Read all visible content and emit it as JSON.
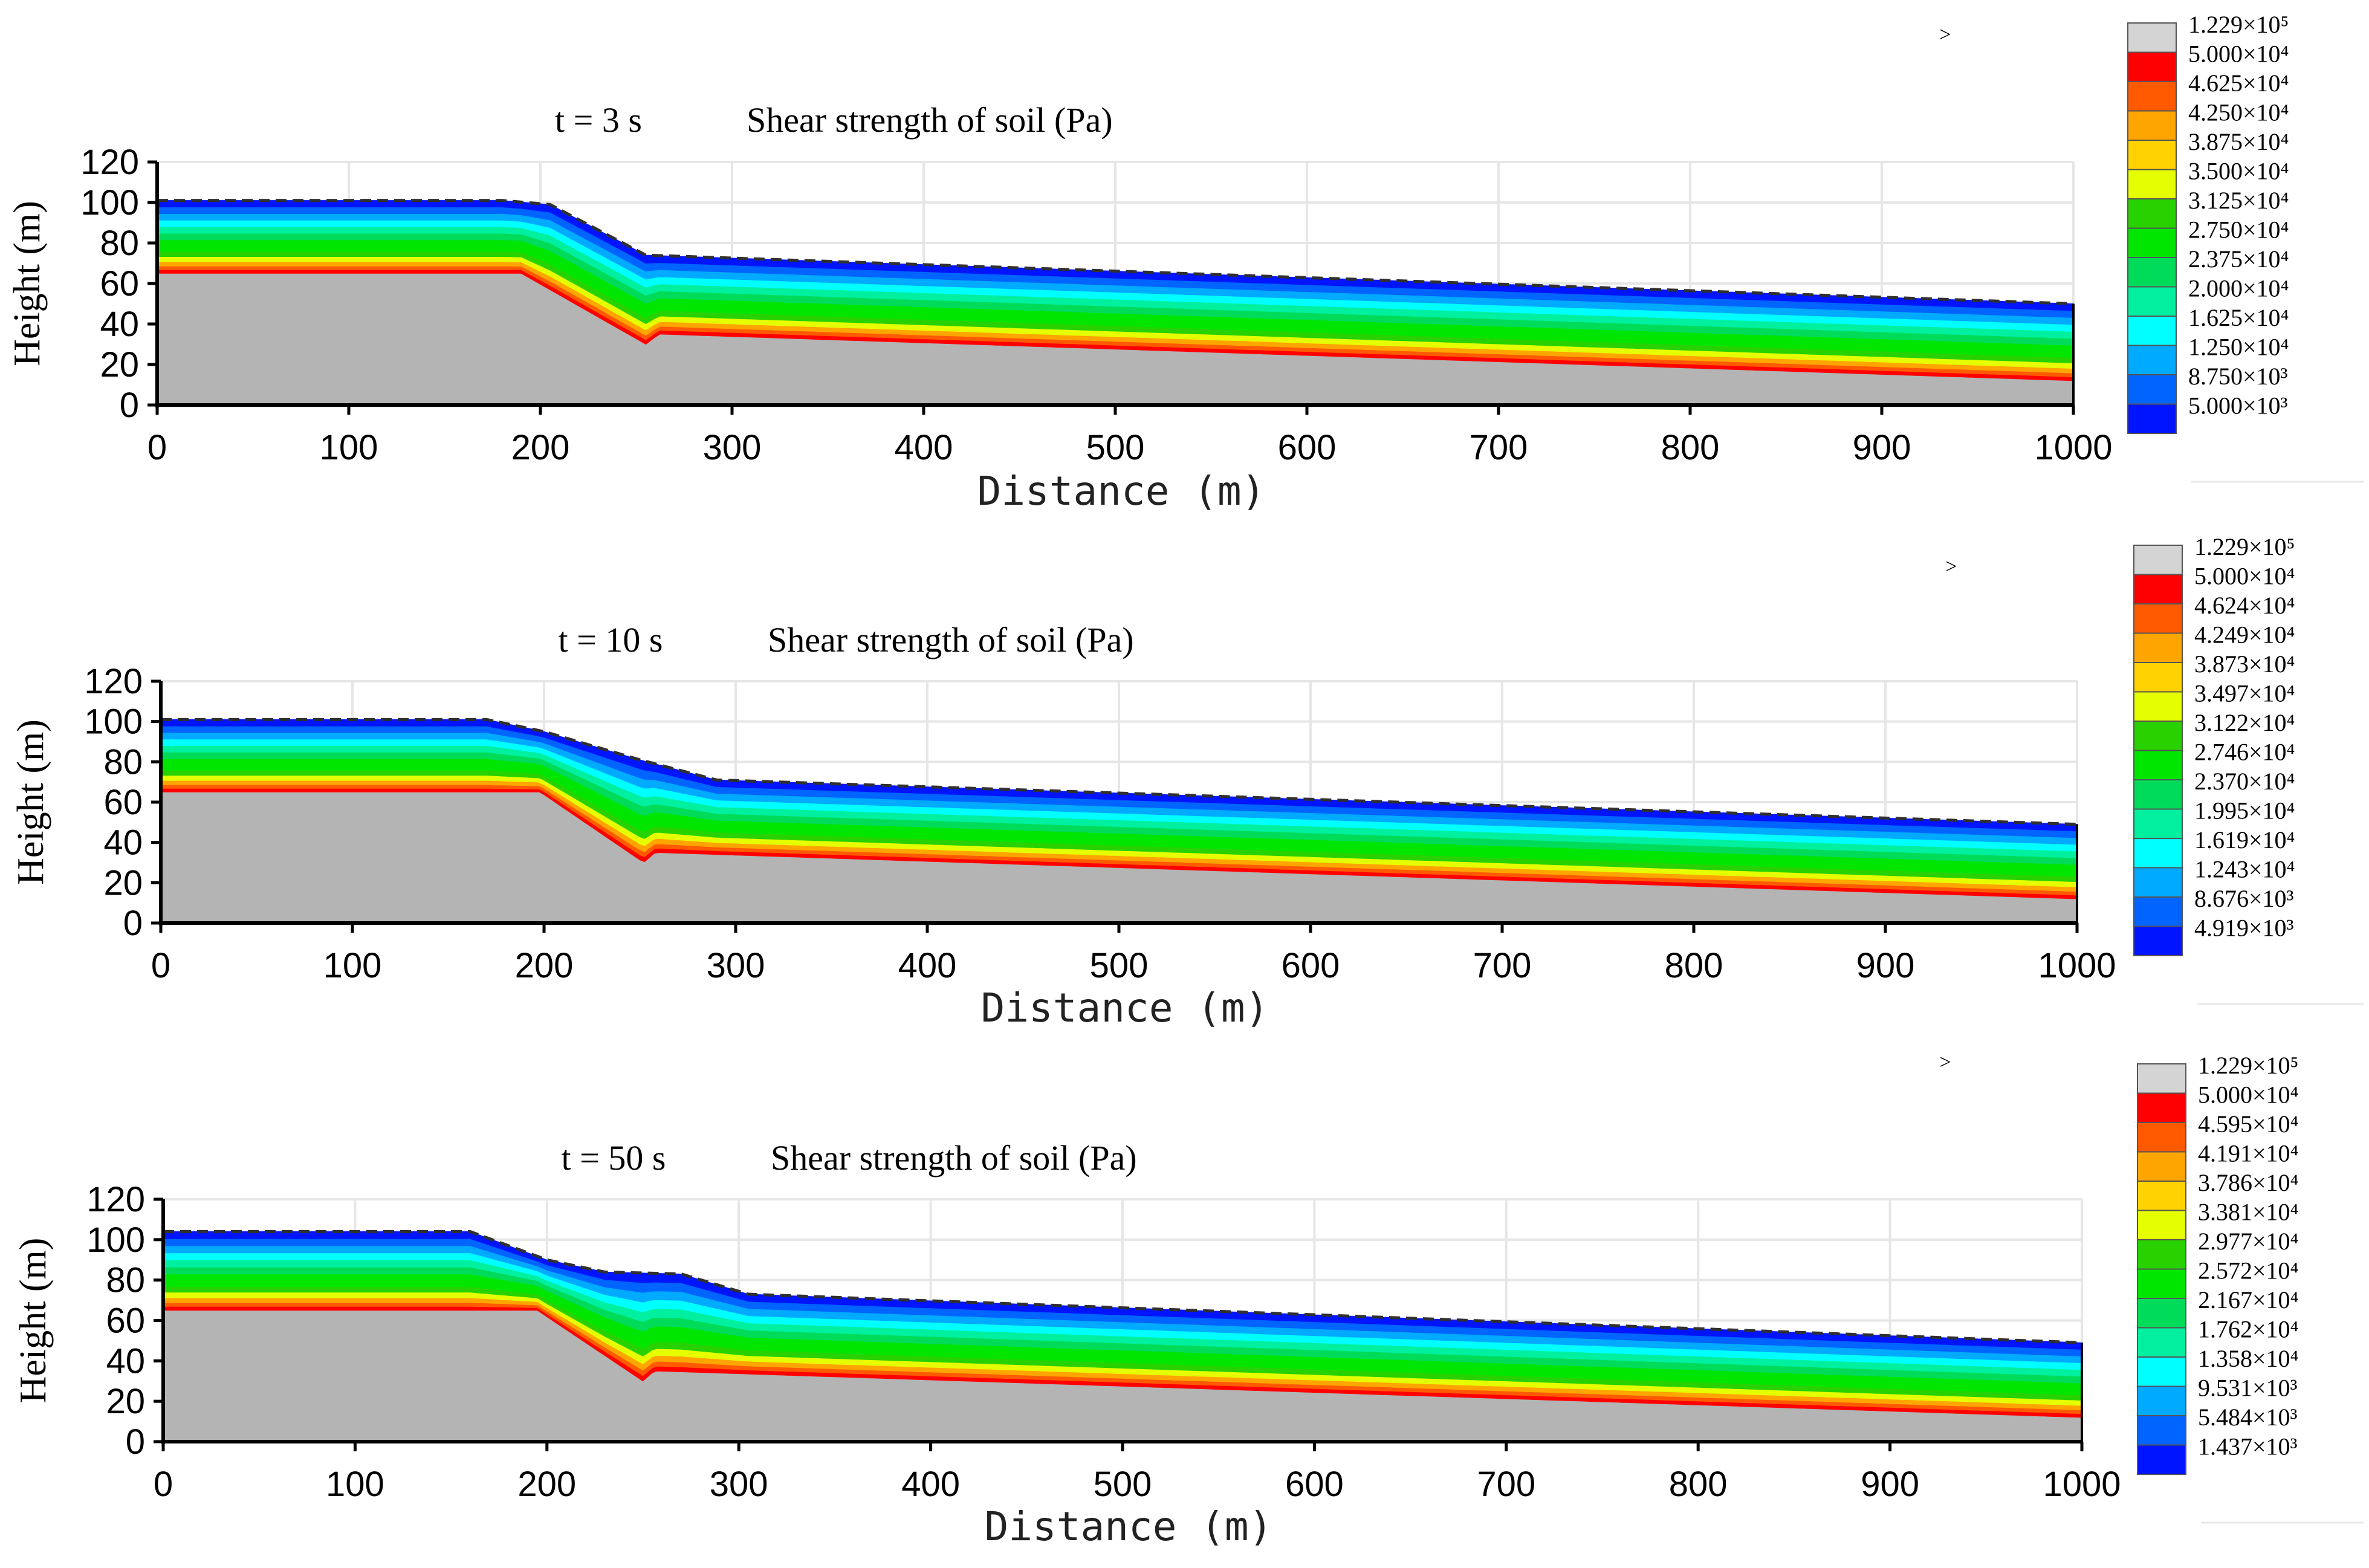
{
  "chart_data": [
    {
      "type": "heatmap",
      "time_label": "t = 3 s",
      "title": "Shear strength of soil (Pa)",
      "xlabel": "Distance (m)",
      "ylabel": "Height (m)",
      "xlim": [
        0,
        1000
      ],
      "ylim": [
        0,
        120
      ],
      "xticks": [
        "0",
        "100",
        "200",
        "300",
        "400",
        "500",
        "600",
        "700",
        "800",
        "900",
        "1000"
      ],
      "yticks": [
        "0",
        "20",
        "40",
        "60",
        "80",
        "100",
        "120"
      ],
      "grid": true,
      "marker": ">",
      "legend_position": "right",
      "legend": [
        {
          "label": "1.229×10⁵",
          "color": "#d4d4d4"
        },
        {
          "label": "5.000×10⁴",
          "color": "#ff0000"
        },
        {
          "label": "4.625×10⁴",
          "color": "#ff5a00"
        },
        {
          "label": "4.250×10⁴",
          "color": "#ffa500"
        },
        {
          "label": "3.875×10⁴",
          "color": "#ffd200"
        },
        {
          "label": "3.500×10⁴",
          "color": "#e6ff00"
        },
        {
          "label": "3.125×10⁴",
          "color": "#28d200"
        },
        {
          "label": "2.750×10⁴",
          "color": "#00e600"
        },
        {
          "label": "2.375×10⁴",
          "color": "#00dc5a"
        },
        {
          "label": "2.000×10⁴",
          "color": "#00f0a0"
        },
        {
          "label": "1.625×10⁴",
          "color": "#00ffff"
        },
        {
          "label": "1.250×10⁴",
          "color": "#00aaff"
        },
        {
          "label": "8.750×10³",
          "color": "#0064ff"
        },
        {
          "label": "5.000×10³",
          "color": "#0014ff"
        }
      ],
      "profile": {
        "surface": [
          [
            0,
            101
          ],
          [
            180,
            101
          ],
          [
            205,
            99
          ],
          [
            255,
            74
          ],
          [
            1000,
            50
          ]
        ],
        "rock": [
          [
            0,
            65
          ],
          [
            190,
            65
          ],
          [
            255,
            30
          ],
          [
            262,
            35
          ],
          [
            1000,
            12
          ]
        ]
      }
    },
    {
      "type": "heatmap",
      "time_label": "t = 10 s",
      "title": "Shear strength of soil (Pa)",
      "xlabel": "Distance (m)",
      "ylabel": "Height (m)",
      "xlim": [
        0,
        1000
      ],
      "ylim": [
        0,
        120
      ],
      "xticks": [
        "0",
        "100",
        "200",
        "300",
        "400",
        "500",
        "600",
        "700",
        "800",
        "900",
        "1000"
      ],
      "yticks": [
        "0",
        "20",
        "40",
        "60",
        "80",
        "100",
        "120"
      ],
      "grid": true,
      "marker": ">",
      "legend_position": "right",
      "legend": [
        {
          "label": "1.229×10⁵",
          "color": "#d4d4d4"
        },
        {
          "label": "5.000×10⁴",
          "color": "#ff0000"
        },
        {
          "label": "4.624×10⁴",
          "color": "#ff5a00"
        },
        {
          "label": "4.249×10⁴",
          "color": "#ffa500"
        },
        {
          "label": "3.873×10⁴",
          "color": "#ffd200"
        },
        {
          "label": "3.497×10⁴",
          "color": "#e6ff00"
        },
        {
          "label": "3.122×10⁴",
          "color": "#28d200"
        },
        {
          "label": "2.746×10⁴",
          "color": "#00e600"
        },
        {
          "label": "2.370×10⁴",
          "color": "#00dc5a"
        },
        {
          "label": "1.995×10⁴",
          "color": "#00f0a0"
        },
        {
          "label": "1.619×10⁴",
          "color": "#00ffff"
        },
        {
          "label": "1.243×10⁴",
          "color": "#00aaff"
        },
        {
          "label": "8.676×10³",
          "color": "#0064ff"
        },
        {
          "label": "4.919×10³",
          "color": "#0014ff"
        }
      ],
      "profile": {
        "surface": [
          [
            0,
            101
          ],
          [
            170,
            101
          ],
          [
            200,
            95
          ],
          [
            250,
            81
          ],
          [
            290,
            71
          ],
          [
            1000,
            49
          ]
        ],
        "rock": [
          [
            0,
            65
          ],
          [
            198,
            65
          ],
          [
            252,
            30
          ],
          [
            258,
            35
          ],
          [
            1000,
            12
          ]
        ]
      }
    },
    {
      "type": "heatmap",
      "time_label": "t = 50 s",
      "title": "Shear strength of soil (Pa)",
      "xlabel": "Distance (m)",
      "ylabel": "Height (m)",
      "xlim": [
        0,
        1000
      ],
      "ylim": [
        0,
        120
      ],
      "xticks": [
        "0",
        "100",
        "200",
        "300",
        "400",
        "500",
        "600",
        "700",
        "800",
        "900",
        "1000"
      ],
      "yticks": [
        "0",
        "20",
        "40",
        "60",
        "80",
        "100",
        "120"
      ],
      "grid": true,
      "marker": ">",
      "legend_position": "right",
      "legend": [
        {
          "label": "1.229×10⁵",
          "color": "#d4d4d4"
        },
        {
          "label": "5.000×10⁴",
          "color": "#ff0000"
        },
        {
          "label": "4.595×10⁴",
          "color": "#ff5a00"
        },
        {
          "label": "4.191×10⁴",
          "color": "#ffa500"
        },
        {
          "label": "3.786×10⁴",
          "color": "#ffd200"
        },
        {
          "label": "3.381×10⁴",
          "color": "#e6ff00"
        },
        {
          "label": "2.977×10⁴",
          "color": "#28d200"
        },
        {
          "label": "2.572×10⁴",
          "color": "#00e600"
        },
        {
          "label": "2.167×10⁴",
          "color": "#00dc5a"
        },
        {
          "label": "1.762×10⁴",
          "color": "#00f0a0"
        },
        {
          "label": "1.358×10⁴",
          "color": "#00ffff"
        },
        {
          "label": "9.531×10³",
          "color": "#00aaff"
        },
        {
          "label": "5.484×10³",
          "color": "#0064ff"
        },
        {
          "label": "1.437×10³",
          "color": "#0014ff"
        }
      ],
      "profile": {
        "surface": [
          [
            0,
            104
          ],
          [
            160,
            104
          ],
          [
            200,
            90
          ],
          [
            230,
            84
          ],
          [
            270,
            83
          ],
          [
            305,
            73
          ],
          [
            1000,
            49
          ]
        ],
        "rock": [
          [
            0,
            65
          ],
          [
            195,
            65
          ],
          [
            250,
            30
          ],
          [
            256,
            35
          ],
          [
            1000,
            12
          ]
        ]
      }
    }
  ]
}
